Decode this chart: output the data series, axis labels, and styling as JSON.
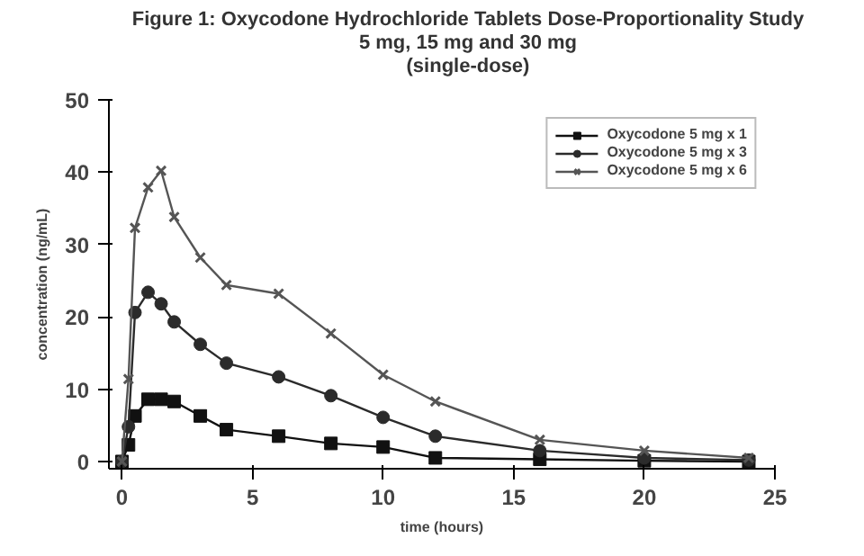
{
  "chart_data": {
    "type": "line",
    "title": "Figure 1:  Oxycodone Hydrochloride Tablets Dose-Proportionality Study\n5 mg, 15 mg and 30 mg\n(single-dose)",
    "xlabel": "time (hours)",
    "ylabel": "concentration (ng/mL)",
    "x": [
      0,
      0.25,
      0.5,
      1,
      1.5,
      2,
      3,
      4,
      6,
      8,
      10,
      12,
      16,
      20,
      24
    ],
    "series": [
      {
        "name": "Oxycodone 5 mg x 1",
        "color": "#111111",
        "marker": "square",
        "values": [
          0,
          2.3,
          6.3,
          8.6,
          8.6,
          8.3,
          6.3,
          4.4,
          3.5,
          2.5,
          2,
          0.5,
          0.3,
          0.1,
          0
        ]
      },
      {
        "name": "Oxycodone 5 mg x 3",
        "color": "#2b2b2b",
        "marker": "circle",
        "values": [
          0,
          4.8,
          20.6,
          23.4,
          21.8,
          19.3,
          16.2,
          13.6,
          11.7,
          9.1,
          6.1,
          3.5,
          1.5,
          0.5,
          0.2
        ]
      },
      {
        "name": "Oxycodone 5 mg x 6",
        "color": "#555555",
        "marker": "cross",
        "values": [
          0,
          11.4,
          32.3,
          37.9,
          40.2,
          33.8,
          28.2,
          24.4,
          23.2,
          17.7,
          12,
          8.3,
          3,
          1.5,
          0.5
        ]
      }
    ],
    "xlim": [
      -0.5,
      25
    ],
    "ylim": [
      -1,
      50
    ],
    "xticks": [
      0,
      5,
      10,
      15,
      20,
      25
    ],
    "yticks": [
      0,
      10,
      20,
      30,
      40,
      50
    ],
    "grid": false,
    "legend": "top right"
  }
}
